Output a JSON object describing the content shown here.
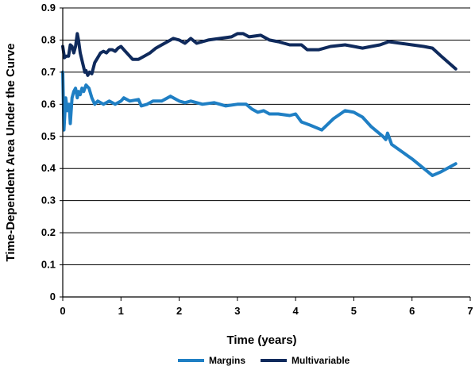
{
  "chart_data": {
    "type": "line",
    "title": "",
    "xlabel": "Time (years)",
    "ylabel": "Time-Dependent Area Under the Curve",
    "xlim": [
      0,
      7
    ],
    "ylim": [
      0,
      0.9
    ],
    "x_ticks": [
      "0",
      "1",
      "2",
      "3",
      "4",
      "5",
      "6",
      "7"
    ],
    "y_ticks": [
      "0",
      "0.1",
      "0.2",
      "0.3",
      "0.4",
      "0.5",
      "0.6",
      "0.7",
      "0.8",
      "0.9"
    ],
    "grid": "horizontal",
    "legend_position": "bottom",
    "series": [
      {
        "name": "Margins",
        "color": "#1f7fc4",
        "points": [
          [
            0.0,
            0.7
          ],
          [
            0.02,
            0.52
          ],
          [
            0.05,
            0.62
          ],
          [
            0.08,
            0.58
          ],
          [
            0.11,
            0.6
          ],
          [
            0.13,
            0.54
          ],
          [
            0.16,
            0.62
          ],
          [
            0.19,
            0.64
          ],
          [
            0.22,
            0.65
          ],
          [
            0.25,
            0.62
          ],
          [
            0.27,
            0.64
          ],
          [
            0.3,
            0.63
          ],
          [
            0.33,
            0.65
          ],
          [
            0.36,
            0.64
          ],
          [
            0.4,
            0.66
          ],
          [
            0.45,
            0.65
          ],
          [
            0.5,
            0.62
          ],
          [
            0.55,
            0.6
          ],
          [
            0.6,
            0.61
          ],
          [
            0.7,
            0.6
          ],
          [
            0.8,
            0.61
          ],
          [
            0.9,
            0.6
          ],
          [
            1.0,
            0.61
          ],
          [
            1.05,
            0.62
          ],
          [
            1.15,
            0.61
          ],
          [
            1.3,
            0.615
          ],
          [
            1.35,
            0.595
          ],
          [
            1.45,
            0.6
          ],
          [
            1.55,
            0.61
          ],
          [
            1.7,
            0.61
          ],
          [
            1.85,
            0.625
          ],
          [
            2.0,
            0.61
          ],
          [
            2.1,
            0.605
          ],
          [
            2.2,
            0.61
          ],
          [
            2.4,
            0.6
          ],
          [
            2.6,
            0.605
          ],
          [
            2.7,
            0.6
          ],
          [
            2.8,
            0.595
          ],
          [
            3.0,
            0.6
          ],
          [
            3.15,
            0.6
          ],
          [
            3.25,
            0.585
          ],
          [
            3.35,
            0.575
          ],
          [
            3.45,
            0.58
          ],
          [
            3.55,
            0.57
          ],
          [
            3.7,
            0.57
          ],
          [
            3.9,
            0.565
          ],
          [
            4.0,
            0.57
          ],
          [
            4.1,
            0.545
          ],
          [
            4.25,
            0.535
          ],
          [
            4.45,
            0.52
          ],
          [
            4.65,
            0.555
          ],
          [
            4.85,
            0.58
          ],
          [
            5.0,
            0.575
          ],
          [
            5.15,
            0.56
          ],
          [
            5.3,
            0.53
          ],
          [
            5.5,
            0.5
          ],
          [
            5.55,
            0.49
          ],
          [
            5.58,
            0.51
          ],
          [
            5.65,
            0.475
          ],
          [
            6.0,
            0.43
          ],
          [
            6.35,
            0.378
          ],
          [
            6.5,
            0.39
          ],
          [
            6.75,
            0.415
          ]
        ]
      },
      {
        "name": "Multivariable",
        "color": "#0f2a5c",
        "points": [
          [
            0.0,
            0.78
          ],
          [
            0.03,
            0.745
          ],
          [
            0.06,
            0.75
          ],
          [
            0.1,
            0.75
          ],
          [
            0.13,
            0.785
          ],
          [
            0.16,
            0.78
          ],
          [
            0.19,
            0.76
          ],
          [
            0.22,
            0.78
          ],
          [
            0.25,
            0.82
          ],
          [
            0.27,
            0.8
          ],
          [
            0.3,
            0.76
          ],
          [
            0.34,
            0.73
          ],
          [
            0.38,
            0.7
          ],
          [
            0.4,
            0.705
          ],
          [
            0.43,
            0.69
          ],
          [
            0.46,
            0.7
          ],
          [
            0.5,
            0.695
          ],
          [
            0.55,
            0.73
          ],
          [
            0.6,
            0.745
          ],
          [
            0.65,
            0.76
          ],
          [
            0.7,
            0.765
          ],
          [
            0.75,
            0.76
          ],
          [
            0.8,
            0.77
          ],
          [
            0.85,
            0.77
          ],
          [
            0.9,
            0.765
          ],
          [
            0.95,
            0.775
          ],
          [
            1.0,
            0.78
          ],
          [
            1.05,
            0.77
          ],
          [
            1.1,
            0.76
          ],
          [
            1.15,
            0.75
          ],
          [
            1.2,
            0.74
          ],
          [
            1.3,
            0.74
          ],
          [
            1.4,
            0.75
          ],
          [
            1.5,
            0.76
          ],
          [
            1.6,
            0.775
          ],
          [
            1.7,
            0.785
          ],
          [
            1.8,
            0.795
          ],
          [
            1.9,
            0.805
          ],
          [
            2.0,
            0.8
          ],
          [
            2.1,
            0.79
          ],
          [
            2.2,
            0.805
          ],
          [
            2.3,
            0.79
          ],
          [
            2.4,
            0.795
          ],
          [
            2.5,
            0.8
          ],
          [
            2.7,
            0.805
          ],
          [
            2.9,
            0.81
          ],
          [
            3.0,
            0.82
          ],
          [
            3.1,
            0.82
          ],
          [
            3.2,
            0.81
          ],
          [
            3.4,
            0.815
          ],
          [
            3.55,
            0.8
          ],
          [
            3.7,
            0.795
          ],
          [
            3.9,
            0.785
          ],
          [
            4.1,
            0.785
          ],
          [
            4.2,
            0.77
          ],
          [
            4.4,
            0.77
          ],
          [
            4.6,
            0.78
          ],
          [
            4.85,
            0.785
          ],
          [
            5.0,
            0.78
          ],
          [
            5.15,
            0.775
          ],
          [
            5.3,
            0.78
          ],
          [
            5.45,
            0.785
          ],
          [
            5.6,
            0.795
          ],
          [
            5.8,
            0.79
          ],
          [
            6.0,
            0.785
          ],
          [
            6.2,
            0.78
          ],
          [
            6.35,
            0.775
          ],
          [
            6.5,
            0.75
          ],
          [
            6.75,
            0.71
          ]
        ]
      }
    ]
  }
}
